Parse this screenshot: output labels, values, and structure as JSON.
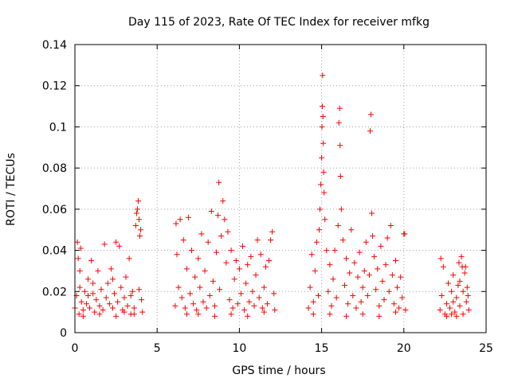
{
  "chart_data": {
    "type": "scatter",
    "title": "Day 115 of 2023, Rate Of TEC Index for receiver mfkg",
    "xlabel": "GPS time / hours",
    "ylabel": "ROTI / TECUs",
    "xlim": [
      0,
      25
    ],
    "ylim": [
      0,
      0.14
    ],
    "xticks": [
      0,
      5,
      10,
      15,
      20,
      25
    ],
    "xtick_labels": [
      "0",
      "5",
      "10",
      "15",
      "20",
      "25"
    ],
    "yticks": [
      0,
      0.02,
      0.04,
      0.06,
      0.08,
      0.1,
      0.12,
      0.14
    ],
    "ytick_labels": [
      "0",
      "0.02",
      "0.04",
      "0.06",
      "0.08",
      "0.1",
      "0.12",
      "0.14"
    ],
    "grid": true,
    "marker": "plus",
    "marker_color": "#ff0000",
    "series": [
      {
        "points": [
          [
            0.0,
            0.012
          ],
          [
            0.1,
            0.018
          ],
          [
            0.15,
            0.044
          ],
          [
            0.2,
            0.036
          ],
          [
            0.25,
            0.009
          ],
          [
            0.3,
            0.022
          ],
          [
            0.35,
            0.041
          ],
          [
            0.4,
            0.015
          ],
          [
            0.5,
            0.011
          ],
          [
            0.6,
            0.02
          ],
          [
            0.7,
            0.014
          ],
          [
            0.8,
            0.026
          ],
          [
            0.9,
            0.012
          ],
          [
            1.0,
            0.035
          ],
          [
            1.1,
            0.019
          ],
          [
            1.2,
            0.01
          ],
          [
            1.3,
            0.016
          ],
          [
            1.4,
            0.03
          ],
          [
            1.5,
            0.013
          ],
          [
            1.6,
            0.021
          ],
          [
            1.7,
            0.011
          ],
          [
            1.8,
            0.043
          ],
          [
            1.9,
            0.017
          ],
          [
            2.0,
            0.024
          ],
          [
            2.1,
            0.014
          ],
          [
            2.2,
            0.031
          ],
          [
            2.3,
            0.012
          ],
          [
            2.4,
            0.019
          ],
          [
            2.5,
            0.044
          ],
          [
            2.6,
            0.015
          ],
          [
            2.7,
            0.042
          ],
          [
            2.8,
            0.022
          ],
          [
            2.9,
            0.011
          ],
          [
            3.0,
            0.017
          ],
          [
            3.1,
            0.027
          ],
          [
            3.2,
            0.013
          ],
          [
            3.3,
            0.036
          ],
          [
            3.4,
            0.018
          ],
          [
            3.5,
            0.02
          ],
          [
            3.6,
            0.012
          ],
          [
            3.7,
            0.052
          ],
          [
            3.75,
            0.058
          ],
          [
            3.8,
            0.06
          ],
          [
            3.85,
            0.064
          ],
          [
            3.9,
            0.055
          ],
          [
            3.95,
            0.047
          ],
          [
            4.0,
            0.05
          ],
          [
            4.05,
            0.016
          ],
          [
            4.1,
            0.01
          ],
          [
            3.6,
            0.009
          ],
          [
            0.5,
            0.008
          ],
          [
            1.5,
            0.009
          ],
          [
            2.5,
            0.008
          ],
          [
            3.0,
            0.01
          ],
          [
            3.4,
            0.009
          ],
          [
            1.1,
            0.024
          ],
          [
            0.8,
            0.018
          ],
          [
            2.3,
            0.026
          ],
          [
            3.9,
            0.021
          ],
          [
            0.3,
            0.03
          ],
          [
            6.1,
            0.013
          ],
          [
            6.15,
            0.053
          ],
          [
            6.2,
            0.038
          ],
          [
            6.3,
            0.022
          ],
          [
            6.4,
            0.055
          ],
          [
            6.5,
            0.017
          ],
          [
            6.6,
            0.045
          ],
          [
            6.7,
            0.012
          ],
          [
            6.8,
            0.031
          ],
          [
            6.9,
            0.056
          ],
          [
            7.0,
            0.019
          ],
          [
            7.1,
            0.04
          ],
          [
            7.2,
            0.014
          ],
          [
            7.3,
            0.027
          ],
          [
            7.4,
            0.011
          ],
          [
            7.5,
            0.036
          ],
          [
            7.6,
            0.022
          ],
          [
            7.7,
            0.048
          ],
          [
            7.8,
            0.015
          ],
          [
            7.9,
            0.03
          ],
          [
            8.0,
            0.012
          ],
          [
            8.1,
            0.044
          ],
          [
            8.2,
            0.018
          ],
          [
            8.3,
            0.059
          ],
          [
            8.4,
            0.025
          ],
          [
            8.5,
            0.013
          ],
          [
            8.6,
            0.039
          ],
          [
            8.7,
            0.057
          ],
          [
            8.75,
            0.073
          ],
          [
            8.8,
            0.021
          ],
          [
            8.9,
            0.047
          ],
          [
            9.0,
            0.064
          ],
          [
            9.1,
            0.055
          ],
          [
            9.2,
            0.034
          ],
          [
            9.3,
            0.049
          ],
          [
            9.4,
            0.016
          ],
          [
            9.5,
            0.04
          ],
          [
            9.6,
            0.012
          ],
          [
            9.7,
            0.026
          ],
          [
            9.8,
            0.035
          ],
          [
            9.9,
            0.014
          ],
          [
            10.0,
            0.031
          ],
          [
            10.1,
            0.019
          ],
          [
            10.2,
            0.042
          ],
          [
            10.3,
            0.011
          ],
          [
            10.4,
            0.024
          ],
          [
            10.5,
            0.033
          ],
          [
            10.6,
            0.015
          ],
          [
            10.7,
            0.037
          ],
          [
            10.8,
            0.02
          ],
          [
            10.9,
            0.013
          ],
          [
            11.0,
            0.028
          ],
          [
            11.1,
            0.045
          ],
          [
            11.2,
            0.017
          ],
          [
            11.3,
            0.038
          ],
          [
            11.4,
            0.012
          ],
          [
            11.5,
            0.022
          ],
          [
            11.6,
            0.032
          ],
          [
            11.7,
            0.014
          ],
          [
            11.8,
            0.035
          ],
          [
            11.9,
            0.045
          ],
          [
            12.0,
            0.049
          ],
          [
            12.1,
            0.019
          ],
          [
            12.15,
            0.011
          ],
          [
            7.5,
            0.009
          ],
          [
            8.5,
            0.008
          ],
          [
            9.5,
            0.009
          ],
          [
            10.5,
            0.008
          ],
          [
            11.5,
            0.01
          ],
          [
            6.8,
            0.009
          ],
          [
            14.2,
            0.012
          ],
          [
            14.3,
            0.022
          ],
          [
            14.4,
            0.038
          ],
          [
            14.5,
            0.015
          ],
          [
            14.6,
            0.03
          ],
          [
            14.7,
            0.044
          ],
          [
            14.8,
            0.018
          ],
          [
            14.85,
            0.05
          ],
          [
            14.9,
            0.06
          ],
          [
            14.95,
            0.072
          ],
          [
            15.0,
            0.085
          ],
          [
            15.02,
            0.1
          ],
          [
            15.04,
            0.11
          ],
          [
            15.06,
            0.125
          ],
          [
            15.08,
            0.105
          ],
          [
            15.1,
            0.092
          ],
          [
            15.12,
            0.078
          ],
          [
            15.15,
            0.068
          ],
          [
            15.2,
            0.055
          ],
          [
            15.3,
            0.04
          ],
          [
            15.4,
            0.02
          ],
          [
            15.5,
            0.033
          ],
          [
            15.6,
            0.013
          ],
          [
            15.7,
            0.026
          ],
          [
            15.8,
            0.04
          ],
          [
            15.9,
            0.017
          ],
          [
            16.0,
            0.052
          ],
          [
            16.05,
            0.102
          ],
          [
            16.1,
            0.109
          ],
          [
            16.12,
            0.091
          ],
          [
            16.15,
            0.076
          ],
          [
            16.2,
            0.06
          ],
          [
            16.3,
            0.045
          ],
          [
            16.4,
            0.023
          ],
          [
            16.5,
            0.036
          ],
          [
            16.6,
            0.014
          ],
          [
            16.7,
            0.029
          ],
          [
            16.8,
            0.05
          ],
          [
            16.9,
            0.018
          ],
          [
            17.0,
            0.034
          ],
          [
            17.1,
            0.012
          ],
          [
            17.2,
            0.027
          ],
          [
            17.3,
            0.039
          ],
          [
            17.4,
            0.015
          ],
          [
            17.5,
            0.022
          ],
          [
            17.6,
            0.03
          ],
          [
            17.7,
            0.044
          ],
          [
            17.8,
            0.018
          ],
          [
            17.9,
            0.028
          ],
          [
            17.95,
            0.098
          ],
          [
            18.0,
            0.106
          ],
          [
            18.05,
            0.058
          ],
          [
            18.1,
            0.047
          ],
          [
            18.2,
            0.037
          ],
          [
            18.3,
            0.021
          ],
          [
            18.4,
            0.031
          ],
          [
            18.5,
            0.013
          ],
          [
            18.6,
            0.042
          ],
          [
            18.7,
            0.025
          ],
          [
            18.8,
            0.016
          ],
          [
            18.9,
            0.033
          ],
          [
            19.0,
            0.046
          ],
          [
            19.1,
            0.02
          ],
          [
            19.2,
            0.052
          ],
          [
            19.3,
            0.028
          ],
          [
            19.4,
            0.014
          ],
          [
            19.5,
            0.035
          ],
          [
            19.6,
            0.022
          ],
          [
            19.7,
            0.012
          ],
          [
            19.8,
            0.027
          ],
          [
            19.9,
            0.017
          ],
          [
            20.0,
            0.048
          ],
          [
            20.05,
            0.048
          ],
          [
            20.1,
            0.011
          ],
          [
            15.5,
            0.009
          ],
          [
            16.5,
            0.008
          ],
          [
            17.5,
            0.009
          ],
          [
            18.5,
            0.008
          ],
          [
            19.5,
            0.01
          ],
          [
            14.5,
            0.009
          ],
          [
            22.2,
            0.011
          ],
          [
            22.25,
            0.036
          ],
          [
            22.3,
            0.018
          ],
          [
            22.4,
            0.032
          ],
          [
            22.5,
            0.009
          ],
          [
            22.6,
            0.014
          ],
          [
            22.7,
            0.024
          ],
          [
            22.8,
            0.012
          ],
          [
            22.9,
            0.02
          ],
          [
            23.0,
            0.028
          ],
          [
            23.1,
            0.01
          ],
          [
            23.2,
            0.017
          ],
          [
            23.3,
            0.023
          ],
          [
            23.35,
            0.034
          ],
          [
            23.4,
            0.013
          ],
          [
            23.5,
            0.037
          ],
          [
            23.55,
            0.032
          ],
          [
            23.6,
            0.02
          ],
          [
            23.7,
            0.029
          ],
          [
            23.75,
            0.032
          ],
          [
            23.8,
            0.015
          ],
          [
            23.85,
            0.022
          ],
          [
            23.9,
            0.018
          ],
          [
            23.95,
            0.011
          ],
          [
            22.6,
            0.008
          ],
          [
            23.2,
            0.008
          ],
          [
            23.6,
            0.009
          ],
          [
            22.9,
            0.009
          ],
          [
            23.0,
            0.015
          ],
          [
            23.4,
            0.025
          ]
        ]
      }
    ]
  }
}
